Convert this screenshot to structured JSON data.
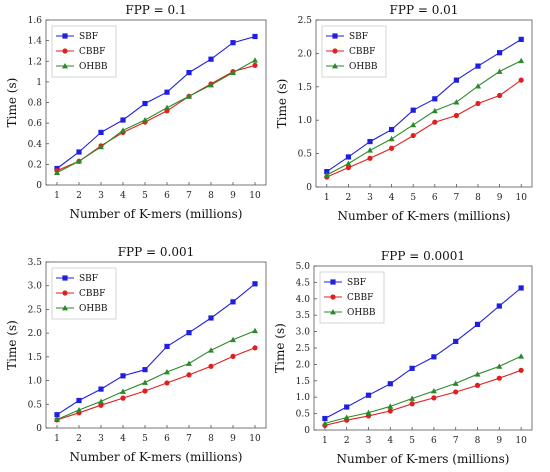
{
  "chart_data": [
    {
      "type": "line",
      "title": "FPP = 0.1",
      "xlabel": "Number of K-mers (millions)",
      "ylabel": "Time (s)",
      "x": [
        1,
        2,
        3,
        4,
        5,
        6,
        7,
        8,
        9,
        10
      ],
      "xticks": [
        "1",
        "2",
        "3",
        "4",
        "5",
        "6",
        "7",
        "8",
        "9",
        "10"
      ],
      "ylim": [
        0,
        1.6
      ],
      "yticks": [
        "0",
        "0.2",
        "0.4",
        "0.6",
        "0.8",
        "1",
        "1.2",
        "1.4",
        "1.6"
      ],
      "legend": "top-left",
      "grid": false,
      "series": [
        {
          "name": "SBF",
          "color": "#1f1fe0",
          "marker": "square",
          "values": [
            0.16,
            0.32,
            0.51,
            0.63,
            0.79,
            0.9,
            1.09,
            1.22,
            1.38,
            1.44
          ]
        },
        {
          "name": "CBBF",
          "color": "#e01f1f",
          "marker": "circle",
          "values": [
            0.14,
            0.23,
            0.38,
            0.51,
            0.61,
            0.72,
            0.86,
            0.98,
            1.1,
            1.16
          ]
        },
        {
          "name": "OHBB",
          "color": "#2a8a2a",
          "marker": "triangle",
          "values": [
            0.12,
            0.23,
            0.37,
            0.53,
            0.63,
            0.75,
            0.86,
            0.97,
            1.09,
            1.21
          ]
        }
      ]
    },
    {
      "type": "line",
      "title": "FPP = 0.01",
      "xlabel": "Number of K-mers (millions)",
      "ylabel": "Time (s)",
      "x": [
        1,
        2,
        3,
        4,
        5,
        6,
        7,
        8,
        9,
        10
      ],
      "xticks": [
        "1",
        "2",
        "3",
        "4",
        "5",
        "6",
        "7",
        "8",
        "9",
        "10"
      ],
      "ylim": [
        0,
        2.5
      ],
      "yticks": [
        "0",
        "0.5",
        "1.0",
        "1.5",
        "2.0",
        "2.5"
      ],
      "legend": "top-left",
      "grid": false,
      "series": [
        {
          "name": "SBF",
          "color": "#1f1fe0",
          "marker": "square",
          "values": [
            0.23,
            0.45,
            0.68,
            0.86,
            1.15,
            1.32,
            1.6,
            1.81,
            2.01,
            2.21
          ]
        },
        {
          "name": "CBBF",
          "color": "#e01f1f",
          "marker": "circle",
          "values": [
            0.15,
            0.29,
            0.43,
            0.58,
            0.77,
            0.97,
            1.07,
            1.25,
            1.37,
            1.6
          ]
        },
        {
          "name": "OHBB",
          "color": "#2a8a2a",
          "marker": "triangle",
          "values": [
            0.18,
            0.35,
            0.55,
            0.72,
            0.93,
            1.14,
            1.27,
            1.51,
            1.73,
            1.89
          ]
        }
      ]
    },
    {
      "type": "line",
      "title": "FPP = 0.001",
      "xlabel": "Number of K-mers (millions)",
      "ylabel": "Time (s)",
      "x": [
        1,
        2,
        3,
        4,
        5,
        6,
        7,
        8,
        9,
        10
      ],
      "xticks": [
        "1",
        "2",
        "3",
        "4",
        "5",
        "6",
        "7",
        "8",
        "9",
        "10"
      ],
      "ylim": [
        0,
        3.5
      ],
      "yticks": [
        "0",
        "0.5",
        "1.0",
        "1.5",
        "2.0",
        "2.5",
        "3.0",
        "3.5"
      ],
      "legend": "top-left",
      "grid": false,
      "series": [
        {
          "name": "SBF",
          "color": "#1f1fe0",
          "marker": "square",
          "values": [
            0.28,
            0.58,
            0.82,
            1.1,
            1.23,
            1.72,
            2.01,
            2.32,
            2.66,
            3.04
          ]
        },
        {
          "name": "CBBF",
          "color": "#e01f1f",
          "marker": "circle",
          "values": [
            0.17,
            0.32,
            0.48,
            0.63,
            0.78,
            0.95,
            1.12,
            1.3,
            1.51,
            1.69
          ]
        },
        {
          "name": "OHBB",
          "color": "#2a8a2a",
          "marker": "triangle",
          "values": [
            0.18,
            0.38,
            0.56,
            0.77,
            0.96,
            1.18,
            1.36,
            1.64,
            1.86,
            2.05
          ]
        }
      ]
    },
    {
      "type": "line",
      "title": "FPP = 0.0001",
      "xlabel": "Number of K-mers (millions)",
      "ylabel": "Time (s)",
      "x": [
        1,
        2,
        3,
        4,
        5,
        6,
        7,
        8,
        9,
        10
      ],
      "xticks": [
        "1",
        "2",
        "3",
        "4",
        "5",
        "6",
        "7",
        "8",
        "9",
        "10"
      ],
      "ylim": [
        0,
        5
      ],
      "yticks": [
        "0",
        "0.5",
        "1.0",
        "1.5",
        "2.0",
        "2.5",
        "3.0",
        "3.5",
        "4.0",
        "4.5",
        "5.0"
      ],
      "legend": "top-left",
      "grid": false,
      "series": [
        {
          "name": "SBF",
          "color": "#1f1fe0",
          "marker": "square",
          "values": [
            0.35,
            0.7,
            1.06,
            1.41,
            1.88,
            2.23,
            2.7,
            3.22,
            3.78,
            4.33
          ]
        },
        {
          "name": "CBBF",
          "color": "#e01f1f",
          "marker": "circle",
          "values": [
            0.14,
            0.3,
            0.43,
            0.58,
            0.8,
            0.98,
            1.16,
            1.36,
            1.58,
            1.82
          ]
        },
        {
          "name": "OHBB",
          "color": "#2a8a2a",
          "marker": "triangle",
          "values": [
            0.2,
            0.38,
            0.53,
            0.72,
            0.96,
            1.19,
            1.42,
            1.7,
            1.94,
            2.25
          ]
        }
      ]
    }
  ]
}
